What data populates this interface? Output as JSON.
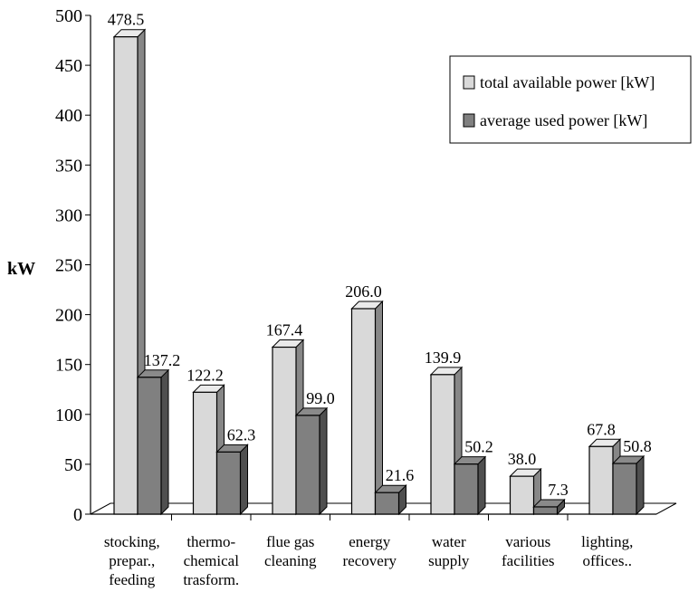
{
  "chart_data": {
    "type": "bar",
    "title": "",
    "xlabel": "",
    "ylabel": "kW",
    "ylim": [
      0,
      500
    ],
    "yticks": [
      "0",
      "50",
      "100",
      "150",
      "200",
      "250",
      "300",
      "350",
      "400",
      "450",
      "500"
    ],
    "categories": [
      [
        "stocking,",
        "prepar.,",
        "feeding"
      ],
      [
        "thermo-",
        "chemical",
        "trasform."
      ],
      [
        "flue gas",
        "cleaning"
      ],
      [
        "energy",
        "recovery"
      ],
      [
        "water",
        "supply"
      ],
      [
        "various",
        "facilities"
      ],
      [
        "lighting,",
        "offices.."
      ]
    ],
    "series": [
      {
        "name": "total available power [kW]",
        "color": "#d9d9d9",
        "values": [
          478.5,
          122.2,
          167.4,
          206.0,
          139.9,
          38.0,
          67.8
        ],
        "labels": [
          "478.5",
          "122.2",
          "167.4",
          "206.0",
          "139.9",
          "38.0",
          "67.8"
        ]
      },
      {
        "name": "average used power [kW]",
        "color": "#808080",
        "values": [
          137.2,
          62.3,
          99.0,
          21.6,
          50.2,
          7.3,
          50.8
        ],
        "labels": [
          "137.2",
          "62.3",
          "99.0",
          "21.6",
          "50.2",
          "7.3",
          "50.8"
        ]
      }
    ],
    "legend_position": "top-right",
    "grid": false,
    "style": "3d-bar"
  }
}
